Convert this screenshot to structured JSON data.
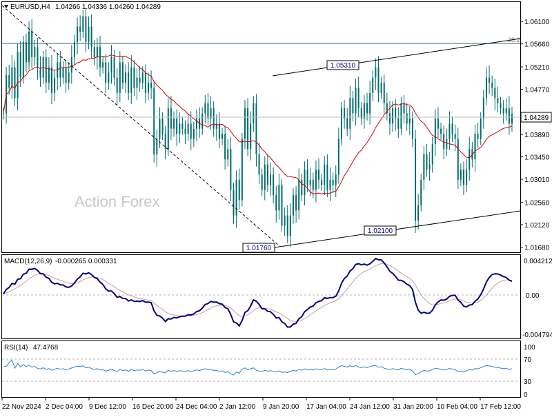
{
  "header": {
    "symbol": "EURUSD,H4",
    "ohlc": "1.04266 1.04336 1.04260 1.04289"
  },
  "watermark": "Action Forex",
  "colors": {
    "candle": "#006b6b",
    "ma": "#d40000",
    "macd": "#00007f",
    "signal": "#c0a0a0",
    "rsi": "#2a7fd0",
    "grid": "#b0b0b0",
    "frame": "#000000"
  },
  "chart_data": [
    {
      "type": "candlestick",
      "price_scale": [
        "1.06100",
        "1.05660",
        "1.05210",
        "1.04770",
        "1.04289",
        "1.03890",
        "1.03450",
        "1.03010",
        "1.02560",
        "1.02120",
        "1.01680"
      ],
      "current_price": "1.04289",
      "ylim": [
        1.0158,
        1.0648
      ],
      "fib_level": {
        "label": "38.2",
        "price": 1.0575
      },
      "annotations": [
        {
          "label": "1.05310",
          "price": 1.0531,
          "index": 131
        },
        {
          "label": "1.01760",
          "price": 1.0176,
          "index": 100
        },
        {
          "label": "1.02100",
          "price": 1.021,
          "index": 144
        }
      ],
      "x_labels": [
        "22 Nov 2024",
        "2 Dec 04:00",
        "9 Dec 12:00",
        "16 Dec 20:00",
        "24 Dec 04:00",
        "2 Jan 12:00",
        "9 Jan 20:00",
        "17 Jan 04:00",
        "24 Jan 12:00",
        "31 Jan 20:00",
        "10 Feb 04:00",
        "17 Feb 12:00"
      ],
      "closes": [
        1.043,
        1.0505,
        1.048,
        1.052,
        1.046,
        1.055,
        1.05,
        1.057,
        1.053,
        1.059,
        1.054,
        1.056,
        1.052,
        1.05,
        1.054,
        1.049,
        1.052,
        1.047,
        1.05,
        1.053,
        1.05,
        1.052,
        1.049,
        1.051,
        1.054,
        1.057,
        1.06,
        1.059,
        1.062,
        1.057,
        1.06,
        1.056,
        1.054,
        1.056,
        1.052,
        1.053,
        1.049,
        1.051,
        1.054,
        1.05,
        1.047,
        1.053,
        1.049,
        1.051,
        1.047,
        1.052,
        1.048,
        1.05,
        1.049,
        1.051,
        1.047,
        1.049,
        1.048,
        1.035,
        1.038,
        1.042,
        1.039,
        1.036,
        1.044,
        1.04,
        1.042,
        1.039,
        1.041,
        1.04,
        1.039,
        1.041,
        1.038,
        1.04,
        1.042,
        1.04,
        1.043,
        1.045,
        1.042,
        1.044,
        1.04,
        1.041,
        1.038,
        1.039,
        1.034,
        1.036,
        1.028,
        1.023,
        1.03,
        1.026,
        1.038,
        1.044,
        1.036,
        1.041,
        1.045,
        1.035,
        1.031,
        1.028,
        1.033,
        1.029,
        1.031,
        1.027,
        1.024,
        1.029,
        1.021,
        1.023,
        1.019,
        1.023,
        1.027,
        1.024,
        1.03,
        1.027,
        1.032,
        1.029,
        1.03,
        1.028,
        1.032,
        1.03,
        1.029,
        1.033,
        1.028,
        1.03,
        1.029,
        1.031,
        1.038,
        1.044,
        1.042,
        1.04,
        1.046,
        1.043,
        1.048,
        1.044,
        1.042,
        1.045,
        1.043,
        1.047,
        1.05,
        1.052,
        1.047,
        1.049,
        1.045,
        1.043,
        1.041,
        1.044,
        1.042,
        1.04,
        1.045,
        1.043,
        1.041,
        1.042,
        1.038,
        1.022,
        1.025,
        1.03,
        1.035,
        1.032,
        1.033,
        1.037,
        1.042,
        1.04,
        1.039,
        1.036,
        1.038,
        1.041,
        1.039,
        1.038,
        1.03,
        1.032,
        1.029,
        1.032,
        1.036,
        1.034,
        1.039,
        1.038,
        1.042,
        1.046,
        1.05,
        1.049,
        1.048,
        1.046,
        1.045,
        1.044,
        1.043,
        1.044,
        1.041,
        1.0429
      ]
    },
    {
      "type": "line",
      "title": "MACD(12,26,9)",
      "values_text": "-0.000265 0.000331",
      "scale_labels": [
        "0.004212",
        "0.00",
        "-0.004794"
      ],
      "ylim": [
        -0.0057,
        0.0049
      ]
    },
    {
      "type": "line",
      "title": "RSI(14)",
      "value_text": "47.4768",
      "scale_labels": [
        "100",
        "70",
        "30",
        "0"
      ],
      "ylim": [
        0,
        100
      ],
      "levels": [
        70,
        30
      ]
    }
  ]
}
